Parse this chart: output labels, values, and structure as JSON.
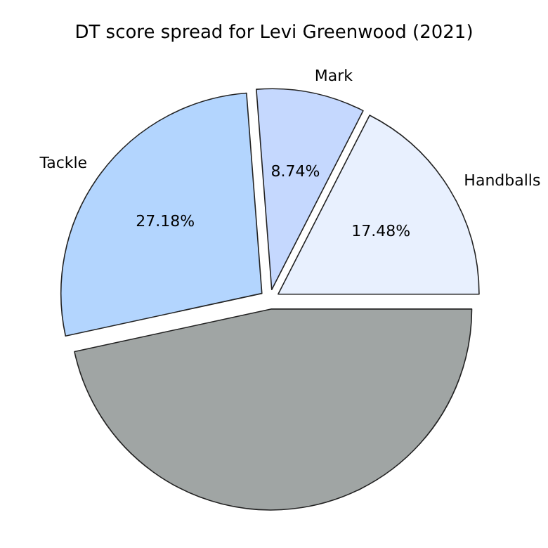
{
  "chart_data": {
    "type": "pie",
    "title": "DT score spread for Levi Greenwood (2021)",
    "categories": [
      "Handballs",
      "Mark",
      "Tackle",
      null
    ],
    "values": [
      17.48,
      8.74,
      27.18,
      46.6
    ],
    "colors": [
      "#e8f0fe",
      "#c5d8fe",
      "#b3d5fe",
      "#a0a5a4"
    ],
    "value_labels": [
      "17.48%",
      "8.74%",
      "27.18%",
      null
    ]
  }
}
